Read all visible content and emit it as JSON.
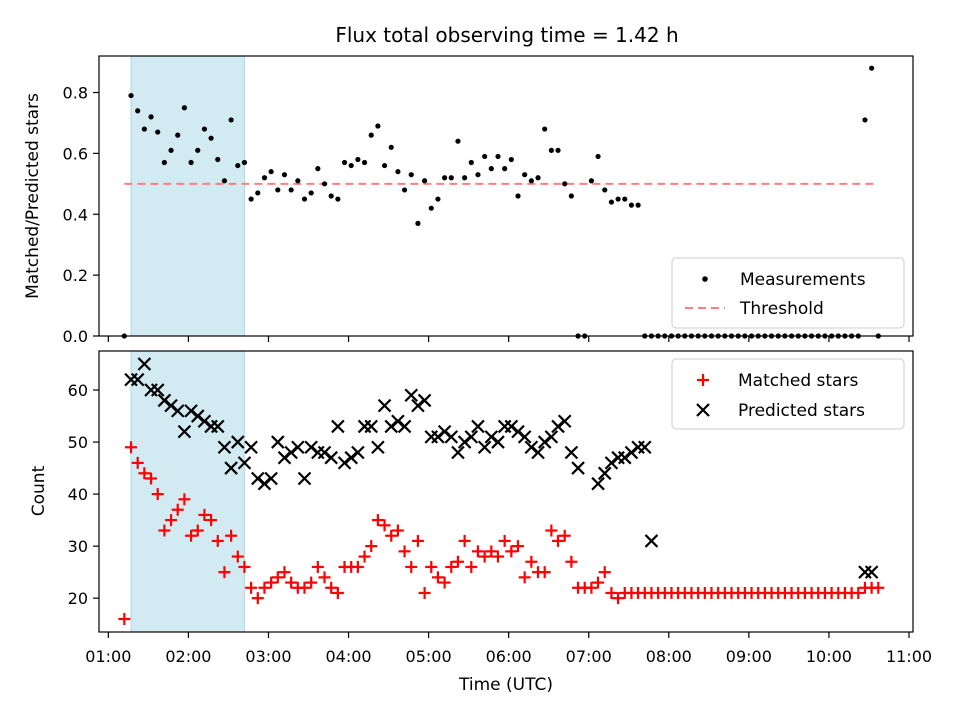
{
  "title": "Flux total observing time = 1.42 h",
  "colors": {
    "measurement": "#000000",
    "threshold": "#ff7f7f",
    "matched": "#ff0000",
    "predicted": "#000000",
    "shade": "#add8e6"
  },
  "chart_data": [
    {
      "type": "scatter",
      "title": "Flux total observing time = 1.42 h",
      "xlabel": "",
      "ylabel": "Matched/Predicted stars",
      "ylim": [
        0,
        0.92
      ],
      "yticks": [
        "0.0",
        "0.2",
        "0.4",
        "0.6",
        "0.8"
      ],
      "legend_position": "lower-right",
      "shaded_interval": [
        "01:17",
        "02:42"
      ],
      "series": [
        {
          "name": "Measurements",
          "marker": "dot",
          "x": [
            "01:12",
            "01:17",
            "01:22",
            "01:27",
            "01:32",
            "01:37",
            "01:42",
            "01:47",
            "01:52",
            "01:57",
            "02:02",
            "02:07",
            "02:12",
            "02:17",
            "02:22",
            "02:27",
            "02:32",
            "02:37",
            "02:42",
            "02:47",
            "02:52",
            "02:57",
            "03:02",
            "03:07",
            "03:12",
            "03:17",
            "03:22",
            "03:27",
            "03:32",
            "03:37",
            "03:42",
            "03:47",
            "03:52",
            "03:57",
            "04:02",
            "04:07",
            "04:12",
            "04:17",
            "04:22",
            "04:27",
            "04:32",
            "04:37",
            "04:42",
            "04:47",
            "04:52",
            "04:57",
            "05:02",
            "05:07",
            "05:12",
            "05:17",
            "05:22",
            "05:27",
            "05:32",
            "05:37",
            "05:42",
            "05:47",
            "05:52",
            "05:57",
            "06:02",
            "06:07",
            "06:12",
            "06:17",
            "06:22",
            "06:27",
            "06:32",
            "06:37",
            "06:42",
            "06:47",
            "06:52",
            "06:57",
            "07:02",
            "07:07",
            "07:12",
            "07:17",
            "07:22",
            "07:27",
            "07:32",
            "07:37",
            "07:42",
            "07:47",
            "07:52",
            "07:57",
            "08:02",
            "08:07",
            "08:12",
            "08:17",
            "08:22",
            "08:27",
            "08:32",
            "08:37",
            "08:42",
            "08:47",
            "08:52",
            "08:57",
            "09:02",
            "09:07",
            "09:12",
            "09:17",
            "09:22",
            "09:27",
            "09:32",
            "09:37",
            "09:42",
            "09:47",
            "09:52",
            "09:57",
            "10:02",
            "10:07",
            "10:12",
            "10:17",
            "10:22",
            "10:27",
            "10:32",
            "10:37"
          ],
          "y": [
            0.0,
            0.79,
            0.74,
            0.68,
            0.72,
            0.67,
            0.57,
            0.61,
            0.66,
            0.75,
            0.57,
            0.61,
            0.68,
            0.65,
            0.58,
            0.51,
            0.71,
            0.56,
            0.57,
            0.45,
            0.47,
            0.52,
            0.54,
            0.48,
            0.53,
            0.48,
            0.51,
            0.45,
            0.47,
            0.55,
            0.5,
            0.46,
            0.45,
            0.57,
            0.56,
            0.58,
            0.57,
            0.66,
            0.69,
            0.56,
            0.62,
            0.54,
            0.48,
            0.53,
            0.37,
            0.51,
            0.42,
            0.45,
            0.52,
            0.52,
            0.64,
            0.52,
            0.57,
            0.53,
            0.59,
            0.55,
            0.59,
            0.55,
            0.58,
            0.46,
            0.53,
            0.51,
            0.52,
            0.68,
            0.61,
            0.61,
            0.5,
            0.46,
            0.0,
            0.0,
            0.51,
            0.59,
            0.48,
            0.44,
            0.45,
            0.45,
            0.43,
            0.43,
            0.0,
            0.0,
            0.0,
            0.0,
            0.0,
            0.0,
            0.0,
            0.0,
            0.0,
            0.0,
            0.0,
            0.0,
            0.0,
            0.0,
            0.0,
            0.0,
            0.0,
            0.0,
            0.0,
            0.0,
            0.0,
            0.0,
            0.0,
            0.0,
            0.0,
            0.0,
            0.0,
            0.0,
            0.0,
            0.0,
            0.0,
            0.0,
            0.0,
            0.71,
            0.88,
            0.0
          ]
        },
        {
          "name": "Threshold",
          "style": "dashed",
          "x": [
            "01:12",
            "10:37"
          ],
          "y": [
            0.5,
            0.5
          ]
        }
      ]
    },
    {
      "type": "scatter",
      "xlabel": "Time (UTC)",
      "ylabel": "Count",
      "ylim": [
        13.5,
        67.5
      ],
      "yticks": [
        "20",
        "30",
        "40",
        "50",
        "60"
      ],
      "xlim": [
        "00:53",
        "11:03"
      ],
      "xticks": [
        "01:00",
        "02:00",
        "03:00",
        "04:00",
        "05:00",
        "06:00",
        "07:00",
        "08:00",
        "09:00",
        "10:00",
        "11:00"
      ],
      "legend_position": "upper-right",
      "shaded_interval": [
        "01:17",
        "02:42"
      ],
      "series": [
        {
          "name": "Matched stars",
          "marker": "plus",
          "x": [
            "01:12",
            "01:17",
            "01:22",
            "01:27",
            "01:32",
            "01:37",
            "01:42",
            "01:47",
            "01:52",
            "01:57",
            "02:02",
            "02:07",
            "02:12",
            "02:17",
            "02:22",
            "02:27",
            "02:32",
            "02:37",
            "02:42",
            "02:47",
            "02:52",
            "02:57",
            "03:02",
            "03:07",
            "03:12",
            "03:17",
            "03:22",
            "03:27",
            "03:32",
            "03:37",
            "03:42",
            "03:47",
            "03:52",
            "03:57",
            "04:02",
            "04:07",
            "04:12",
            "04:17",
            "04:22",
            "04:27",
            "04:32",
            "04:37",
            "04:42",
            "04:47",
            "04:52",
            "04:57",
            "05:02",
            "05:07",
            "05:12",
            "05:17",
            "05:22",
            "05:27",
            "05:32",
            "05:37",
            "05:42",
            "05:47",
            "05:52",
            "05:57",
            "06:02",
            "06:07",
            "06:12",
            "06:17",
            "06:22",
            "06:27",
            "06:32",
            "06:37",
            "06:42",
            "06:47",
            "06:52",
            "06:57",
            "07:02",
            "07:07",
            "07:12",
            "07:17",
            "07:22",
            "07:27",
            "07:32",
            "07:37",
            "07:42",
            "07:47",
            "07:52",
            "07:57",
            "08:02",
            "08:07",
            "08:12",
            "08:17",
            "08:22",
            "08:27",
            "08:32",
            "08:37",
            "08:42",
            "08:47",
            "08:52",
            "08:57",
            "09:02",
            "09:07",
            "09:12",
            "09:17",
            "09:22",
            "09:27",
            "09:32",
            "09:37",
            "09:42",
            "09:47",
            "09:52",
            "09:57",
            "10:02",
            "10:07",
            "10:12",
            "10:17",
            "10:22",
            "10:27",
            "10:32",
            "10:37"
          ],
          "y": [
            16,
            49,
            46,
            44,
            43,
            40,
            33,
            35,
            37,
            39,
            32,
            33,
            36,
            35,
            31,
            25,
            32,
            28,
            26,
            22,
            20,
            22,
            23,
            24,
            25,
            23,
            22,
            22,
            23,
            26,
            24,
            22,
            21,
            26,
            26,
            26,
            28,
            30,
            35,
            34,
            32,
            33,
            29,
            26,
            31,
            21,
            26,
            24,
            23,
            26,
            27,
            31,
            26,
            29,
            28,
            29,
            28,
            31,
            29,
            30,
            24,
            27,
            25,
            25,
            33,
            31,
            32,
            27,
            22,
            22,
            22,
            23,
            25,
            21,
            20,
            21,
            21,
            21,
            21,
            21,
            21,
            21,
            21,
            21,
            21,
            21,
            21,
            21,
            21,
            21,
            21,
            21,
            21,
            21,
            21,
            21,
            21,
            21,
            21,
            21,
            21,
            21,
            21,
            21,
            21,
            21,
            21,
            21,
            21,
            21,
            21,
            22,
            22,
            22
          ]
        },
        {
          "name": "Predicted stars",
          "marker": "x",
          "x": [
            "01:17",
            "01:22",
            "01:27",
            "01:32",
            "01:37",
            "01:42",
            "01:47",
            "01:52",
            "01:57",
            "02:02",
            "02:07",
            "02:12",
            "02:17",
            "02:22",
            "02:27",
            "02:32",
            "02:37",
            "02:42",
            "02:47",
            "02:52",
            "02:57",
            "03:02",
            "03:07",
            "03:12",
            "03:17",
            "03:22",
            "03:27",
            "03:32",
            "03:37",
            "03:42",
            "03:47",
            "03:52",
            "03:57",
            "04:02",
            "04:07",
            "04:12",
            "04:17",
            "04:22",
            "04:27",
            "04:32",
            "04:37",
            "04:42",
            "04:47",
            "04:52",
            "04:57",
            "05:02",
            "05:07",
            "05:12",
            "05:17",
            "05:22",
            "05:27",
            "05:32",
            "05:37",
            "05:42",
            "05:47",
            "05:52",
            "05:57",
            "06:02",
            "06:07",
            "06:12",
            "06:17",
            "06:22",
            "06:27",
            "06:32",
            "06:37",
            "06:42",
            "06:47",
            "06:52",
            "07:07",
            "07:12",
            "07:17",
            "07:22",
            "07:27",
            "07:32",
            "07:37",
            "07:42",
            "07:47",
            "10:27",
            "10:32"
          ],
          "y": [
            62,
            62,
            65,
            60,
            60,
            58,
            57,
            56,
            52,
            56,
            55,
            54,
            53,
            53,
            49,
            45,
            50,
            46,
            49,
            43,
            42,
            43,
            50,
            47,
            48,
            49,
            43,
            49,
            48,
            48,
            47,
            53,
            46,
            47,
            48,
            53,
            53,
            49,
            57,
            53,
            54,
            53,
            59,
            57,
            58,
            51,
            51,
            52,
            51,
            48,
            50,
            51,
            53,
            49,
            51,
            50,
            53,
            53,
            52,
            51,
            49,
            48,
            50,
            51,
            53,
            54,
            48,
            45,
            42,
            44,
            46,
            47,
            47,
            48,
            49,
            49,
            31,
            25,
            25
          ]
        }
      ]
    }
  ]
}
